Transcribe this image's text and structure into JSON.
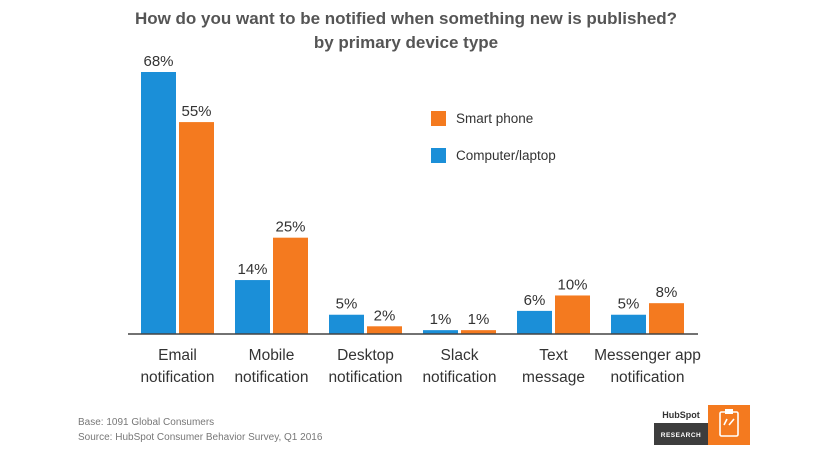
{
  "colors": {
    "computer": "#1B8FD8",
    "phone": "#F47A1F",
    "axis": "#444444",
    "badge_dark": "#3d3d3d"
  },
  "chart_data": {
    "type": "bar",
    "title": "How do you want to be notified when something new is published?",
    "subtitle": "by primary device type",
    "categories": [
      [
        "Email",
        "notification"
      ],
      [
        "Mobile",
        "notification"
      ],
      [
        "Desktop",
        "notification"
      ],
      [
        "Slack",
        "notification"
      ],
      [
        "Text",
        "message"
      ],
      [
        "Messenger app",
        "notification"
      ]
    ],
    "series": [
      {
        "name": "Computer/laptop",
        "values": [
          68,
          14,
          5,
          1,
          6,
          5
        ]
      },
      {
        "name": "Smart phone",
        "values": [
          55,
          25,
          2,
          1,
          10,
          8
        ]
      }
    ],
    "value_suffix": "%",
    "ylim": [
      0,
      70
    ],
    "legend": [
      "Smart phone",
      "Computer/laptop"
    ],
    "legend_position": "top-right",
    "grid": false
  },
  "footer": {
    "base": "Base: 1091 Global Consumers",
    "source": "Source: HubSpot Consumer Behavior Survey, Q1 2016"
  },
  "badge": {
    "brand": "HubSpot",
    "label": "RESEARCH",
    "icon": "clipboard-icon"
  }
}
